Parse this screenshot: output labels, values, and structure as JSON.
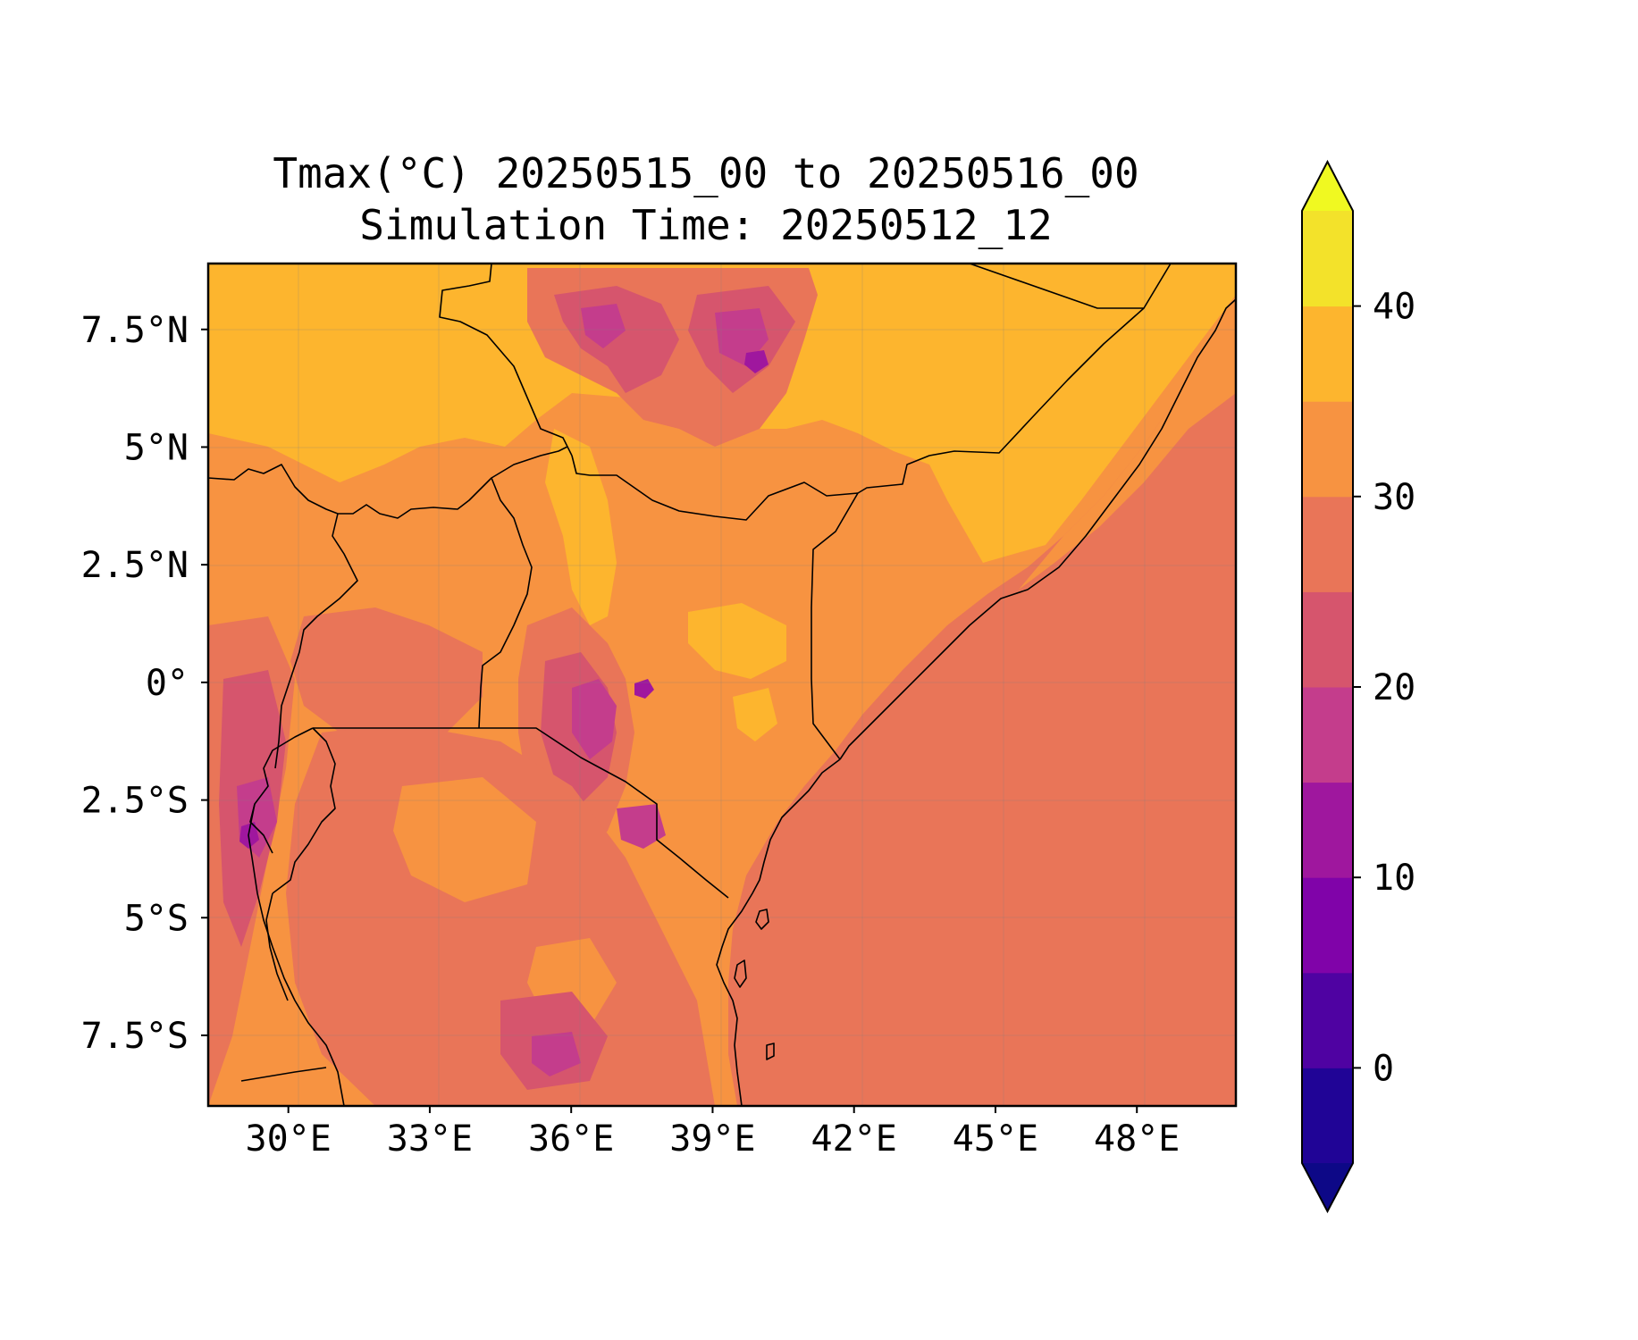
{
  "title": {
    "line1": "Tmax(°C) 20250515_00 to 20250516_00",
    "line2": "Simulation Time: 20250512_12"
  },
  "map": {
    "variable": "Tmax",
    "units": "°C",
    "extent": {
      "lon_min": 28.3,
      "lon_max": 50.1,
      "lat_min": -9.0,
      "lat_max": 8.9
    },
    "x_ticks": [
      {
        "value": 30,
        "label": "30°E"
      },
      {
        "value": 33,
        "label": "33°E"
      },
      {
        "value": 36,
        "label": "36°E"
      },
      {
        "value": 39,
        "label": "39°E"
      },
      {
        "value": 42,
        "label": "42°E"
      },
      {
        "value": 45,
        "label": "45°E"
      },
      {
        "value": 48,
        "label": "48°E"
      }
    ],
    "y_ticks": [
      {
        "value": 7.5,
        "label": "7.5°N"
      },
      {
        "value": 5,
        "label": "5°N"
      },
      {
        "value": 2.5,
        "label": "2.5°N"
      },
      {
        "value": 0,
        "label": "0°"
      },
      {
        "value": -2.5,
        "label": "2.5°S"
      },
      {
        "value": -5,
        "label": "5°S"
      },
      {
        "value": -7.5,
        "label": "7.5°S"
      }
    ],
    "gridlines": true,
    "land_background_color": "#f79341",
    "ocean_color": "#e97558",
    "border_color": "#000000"
  },
  "colorbar": {
    "colormap": "plasma",
    "levels": [
      -5,
      0,
      5,
      10,
      15,
      20,
      25,
      30,
      35,
      40,
      45
    ],
    "colors": [
      "#200496",
      "#4f02a2",
      "#8003a9",
      "#9f179e",
      "#c43d8c",
      "#d6556d",
      "#e97558",
      "#f79341",
      "#fdb52e",
      "#f3e22a"
    ],
    "extend_low_color": "#0d0887",
    "extend_high_color": "#f0f921",
    "ticks": [
      {
        "value": 0,
        "label": "0"
      },
      {
        "value": 10,
        "label": "10"
      },
      {
        "value": 20,
        "label": "20"
      },
      {
        "value": 30,
        "label": "30"
      },
      {
        "value": 40,
        "label": "40"
      }
    ]
  }
}
